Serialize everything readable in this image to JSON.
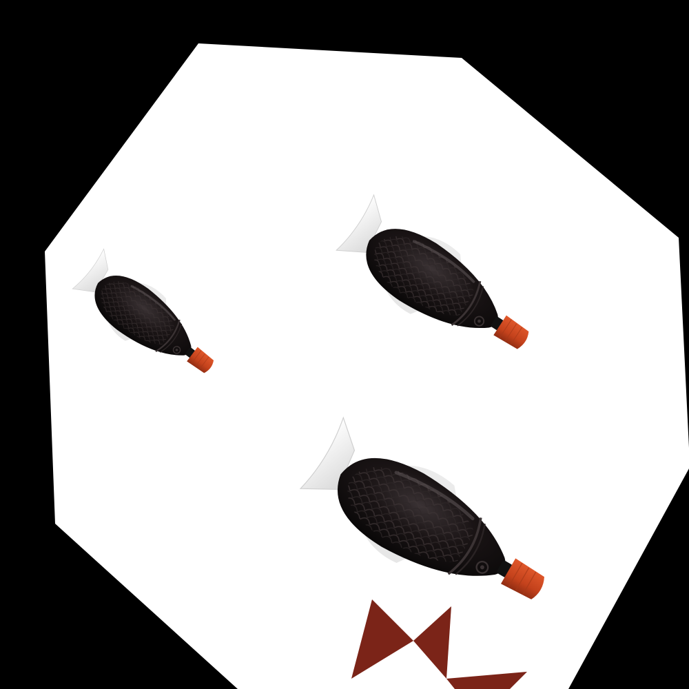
{
  "scene": {
    "background_color": "#000000",
    "panel_color": "#ffffff",
    "panel_shape": "octagon",
    "objects": [
      {
        "name": "fish-shaped-sauce-bottle",
        "size": "small",
        "body_color": "#1a1314",
        "cap_color": "#c0401c",
        "fin_color": "#e7e7e7"
      },
      {
        "name": "fish-shaped-sauce-bottle",
        "size": "medium",
        "body_color": "#141112",
        "cap_color": "#c9461f",
        "fin_color": "#ececec"
      },
      {
        "name": "fish-shaped-sauce-bottle",
        "size": "large",
        "body_color": "#151213",
        "cap_color": "#cc4a22",
        "fin_color": "#eeeeee"
      }
    ],
    "decor": {
      "name": "red-triangles",
      "color": "#7b2418"
    }
  }
}
